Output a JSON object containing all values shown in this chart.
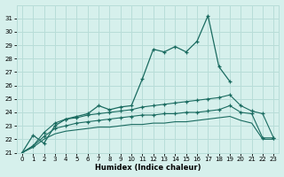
{
  "xlabel": "Humidex (Indice chaleur)",
  "bg_color": "#d6f0ec",
  "grid_color": "#b8ddd8",
  "line_color": "#1a6b60",
  "x": [
    0,
    1,
    2,
    3,
    4,
    5,
    6,
    7,
    8,
    9,
    10,
    11,
    12,
    13,
    14,
    15,
    16,
    17,
    18,
    19,
    20,
    21,
    22,
    23
  ],
  "y_main": [
    21.0,
    22.3,
    21.7,
    23.0,
    23.5,
    23.7,
    23.9,
    24.5,
    24.2,
    24.4,
    24.5,
    26.5,
    28.7,
    28.5,
    28.9,
    28.5,
    29.3,
    31.2,
    27.4,
    26.3,
    null,
    null,
    null,
    null
  ],
  "y_line2": [
    21.0,
    21.5,
    22.5,
    23.2,
    23.5,
    23.6,
    23.8,
    23.9,
    24.0,
    24.1,
    24.2,
    24.4,
    24.5,
    24.6,
    24.7,
    24.8,
    24.9,
    25.0,
    25.1,
    25.3,
    24.5,
    24.1,
    23.9,
    22.1
  ],
  "y_line3": [
    21.0,
    21.5,
    22.2,
    22.8,
    23.0,
    23.2,
    23.3,
    23.4,
    23.5,
    23.6,
    23.7,
    23.8,
    23.8,
    23.9,
    23.9,
    24.0,
    24.0,
    24.1,
    24.2,
    24.5,
    24.0,
    23.9,
    22.1,
    22.1
  ],
  "y_line4": [
    21.0,
    21.4,
    22.0,
    22.4,
    22.6,
    22.7,
    22.8,
    22.9,
    22.9,
    23.0,
    23.1,
    23.1,
    23.2,
    23.2,
    23.3,
    23.3,
    23.4,
    23.5,
    23.6,
    23.7,
    23.4,
    23.2,
    22.0,
    22.0
  ],
  "ylim": [
    21,
    32
  ],
  "xlim": [
    -0.5,
    23.5
  ],
  "yticks": [
    21,
    22,
    23,
    24,
    25,
    26,
    27,
    28,
    29,
    30,
    31
  ],
  "xticks": [
    0,
    1,
    2,
    3,
    4,
    5,
    6,
    7,
    8,
    9,
    10,
    11,
    12,
    13,
    14,
    15,
    16,
    17,
    18,
    19,
    20,
    21,
    22,
    23
  ]
}
